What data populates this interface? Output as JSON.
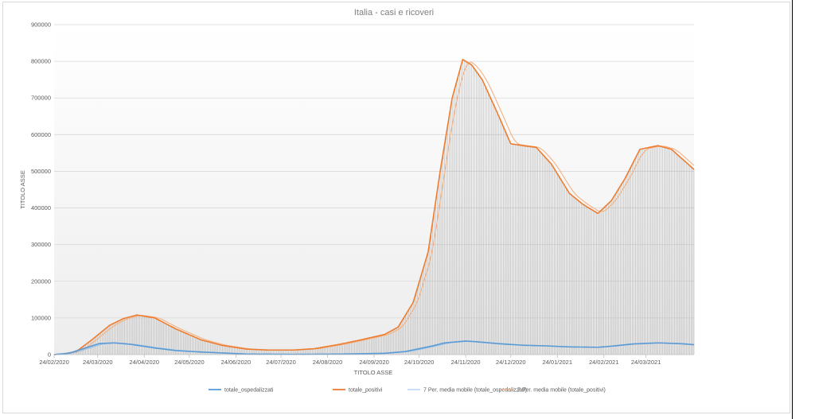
{
  "chart_data": {
    "type": "line",
    "title": "Italia - casi e ricoveri",
    "xlabel": "TITOLO ASSE",
    "ylabel": "TITOLO ASSE",
    "ylim": [
      0,
      900000
    ],
    "y_ticks": [
      "0",
      "100000",
      "200000",
      "300000",
      "400000",
      "500000",
      "600000",
      "700000",
      "800000",
      "900000"
    ],
    "x_ticks": [
      "24/02/2020",
      "24/03/2020",
      "24/04/2020",
      "24/05/2020",
      "24/06/2020",
      "24/07/2020",
      "24/08/2020",
      "24/09/2020",
      "24/10/2020",
      "24/11/2020",
      "24/12/2020",
      "24/01/2021",
      "24/02/2021",
      "24/03/2021"
    ],
    "x_start": "24/02/2020",
    "x_end": "25/04/2021",
    "grid": true,
    "legend_position": "bottom",
    "series": [
      {
        "name": "totale_ospedalizzati",
        "color": "#5b9bd5",
        "points": [
          [
            "24/02/2020",
            100
          ],
          [
            "05/03/2020",
            4000
          ],
          [
            "15/03/2020",
            17000
          ],
          [
            "25/03/2020",
            30000
          ],
          [
            "04/04/2020",
            32000
          ],
          [
            "15/04/2020",
            28000
          ],
          [
            "01/05/2020",
            18000
          ],
          [
            "15/05/2020",
            11000
          ],
          [
            "01/06/2020",
            7000
          ],
          [
            "01/07/2020",
            1500
          ],
          [
            "01/08/2020",
            800
          ],
          [
            "01/09/2020",
            1500
          ],
          [
            "01/10/2020",
            3500
          ],
          [
            "15/10/2020",
            8500
          ],
          [
            "01/11/2020",
            23000
          ],
          [
            "10/11/2020",
            32000
          ],
          [
            "24/11/2020",
            37000
          ],
          [
            "01/12/2020",
            35000
          ],
          [
            "15/12/2020",
            30000
          ],
          [
            "01/01/2021",
            25500
          ],
          [
            "15/01/2021",
            24000
          ],
          [
            "01/02/2021",
            21000
          ],
          [
            "20/02/2021",
            20000
          ],
          [
            "01/03/2021",
            23000
          ],
          [
            "15/03/2021",
            29000
          ],
          [
            "01/04/2021",
            32000
          ],
          [
            "15/04/2021",
            30000
          ],
          [
            "25/04/2021",
            27000
          ]
        ]
      },
      {
        "name": "totale_positivi",
        "color": "#ed7d31",
        "points": [
          [
            "24/02/2020",
            200
          ],
          [
            "01/03/2020",
            1600
          ],
          [
            "10/03/2020",
            9000
          ],
          [
            "20/03/2020",
            40000
          ],
          [
            "01/04/2020",
            80000
          ],
          [
            "10/04/2020",
            98000
          ],
          [
            "19/04/2020",
            108000
          ],
          [
            "01/05/2020",
            100000
          ],
          [
            "15/05/2020",
            70000
          ],
          [
            "01/06/2020",
            40000
          ],
          [
            "15/06/2020",
            25000
          ],
          [
            "01/07/2020",
            15000
          ],
          [
            "15/07/2020",
            12500
          ],
          [
            "01/08/2020",
            12500
          ],
          [
            "15/08/2020",
            16000
          ],
          [
            "01/09/2020",
            28000
          ],
          [
            "15/09/2020",
            40000
          ],
          [
            "01/10/2020",
            55000
          ],
          [
            "10/10/2020",
            75000
          ],
          [
            "20/10/2020",
            142000
          ],
          [
            "30/10/2020",
            280000
          ],
          [
            "07/11/2020",
            500000
          ],
          [
            "15/11/2020",
            700000
          ],
          [
            "22/11/2020",
            805000
          ],
          [
            "28/11/2020",
            790000
          ],
          [
            "05/12/2020",
            750000
          ],
          [
            "15/12/2020",
            660000
          ],
          [
            "24/12/2020",
            575000
          ],
          [
            "01/01/2021",
            570000
          ],
          [
            "10/01/2021",
            565000
          ],
          [
            "20/01/2021",
            520000
          ],
          [
            "01/02/2021",
            440000
          ],
          [
            "10/02/2021",
            410000
          ],
          [
            "20/02/2021",
            385000
          ],
          [
            "01/03/2021",
            420000
          ],
          [
            "10/03/2021",
            480000
          ],
          [
            "20/03/2021",
            560000
          ],
          [
            "01/04/2021",
            570000
          ],
          [
            "10/04/2021",
            560000
          ],
          [
            "25/04/2021",
            505000
          ]
        ]
      },
      {
        "name": "7 Per. media mobile (totale_ospedalizzati)",
        "color": "#9dc3e6"
      },
      {
        "name": "7 Per. media mobile (totale_positivi)",
        "color": "#f4b183"
      }
    ]
  }
}
